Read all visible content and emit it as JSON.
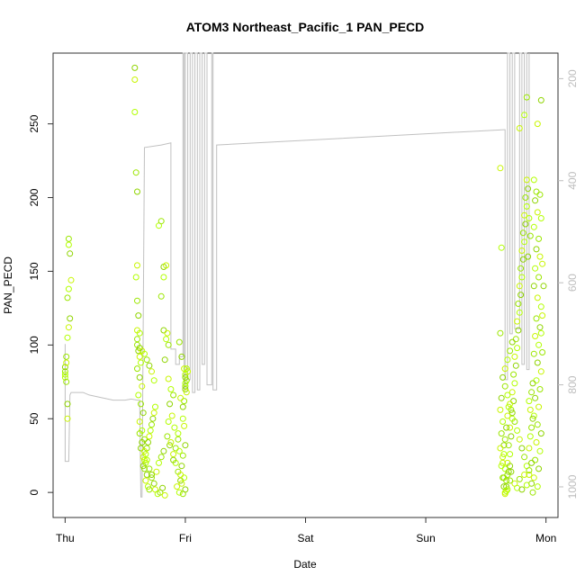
{
  "chart_data": {
    "type": "scatter",
    "title": "ATOM3 Northeast_Pacific_1 PAN_PECD",
    "xlabel": "Date",
    "ylabel": "PAN_PECD",
    "x_ticks": [
      "Thu",
      "Fri",
      "Sat",
      "Sun",
      "Mon"
    ],
    "y_ticks": [
      0,
      50,
      100,
      150,
      200,
      250
    ],
    "ylim": [
      -17,
      298
    ],
    "secondary_axis": {
      "side": "right",
      "color": "#bdbdbd",
      "ticks": [
        200,
        400,
        600,
        800,
        1000
      ],
      "lim": [
        1060,
        150
      ],
      "reversed": true
    },
    "x_units": "days since Thu 00:00",
    "xlim": [
      -0.1,
      4.1
    ],
    "marker_colors": [
      "#b2ff00",
      "#9be600",
      "#8fd400",
      "#c8f500"
    ],
    "line_color": "#c0c0c0",
    "line_series": [
      [
        0.0,
        720
      ],
      [
        0.0,
        950
      ],
      [
        0.03,
        950
      ],
      [
        0.04,
        820
      ],
      [
        0.05,
        815
      ],
      [
        0.08,
        815
      ],
      [
        0.1,
        815
      ],
      [
        0.15,
        815
      ],
      [
        0.2,
        820
      ],
      [
        0.3,
        825
      ],
      [
        0.4,
        830
      ],
      [
        0.5,
        830
      ],
      [
        0.55,
        828
      ],
      [
        0.6,
        830
      ],
      [
        0.62,
        830
      ],
      [
        0.63,
        1020
      ],
      [
        0.64,
        1020
      ],
      [
        0.66,
        335
      ],
      [
        0.8,
        330
      ],
      [
        0.88,
        326
      ],
      [
        0.88,
        730
      ],
      [
        0.92,
        730
      ],
      [
        0.92,
        760
      ],
      [
        0.95,
        760
      ],
      [
        0.95,
        745
      ],
      [
        0.98,
        745
      ],
      [
        0.98,
        150
      ],
      [
        0.99,
        150
      ],
      [
        0.99,
        810
      ],
      [
        1.0,
        810
      ],
      [
        1.0,
        150
      ],
      [
        1.02,
        150
      ],
      [
        1.02,
        790
      ],
      [
        1.04,
        790
      ],
      [
        1.04,
        150
      ],
      [
        1.06,
        150
      ],
      [
        1.06,
        815
      ],
      [
        1.08,
        815
      ],
      [
        1.08,
        150
      ],
      [
        1.1,
        150
      ],
      [
        1.1,
        810
      ],
      [
        1.12,
        810
      ],
      [
        1.12,
        150
      ],
      [
        1.14,
        150
      ],
      [
        1.14,
        760
      ],
      [
        1.16,
        760
      ],
      [
        1.16,
        150
      ],
      [
        1.18,
        150
      ],
      [
        1.18,
        800
      ],
      [
        1.22,
        800
      ],
      [
        1.22,
        150
      ],
      [
        1.23,
        150
      ],
      [
        1.23,
        810
      ],
      [
        1.26,
        810
      ],
      [
        1.26,
        330
      ],
      [
        3.65,
        300
      ],
      [
        3.66,
        300
      ],
      [
        3.66,
        790
      ],
      [
        3.68,
        790
      ],
      [
        3.68,
        150
      ],
      [
        3.7,
        150
      ],
      [
        3.7,
        700
      ],
      [
        3.72,
        700
      ],
      [
        3.72,
        150
      ],
      [
        3.74,
        150
      ],
      [
        3.74,
        690
      ],
      [
        3.78,
        690
      ],
      [
        3.78,
        150
      ],
      [
        3.8,
        150
      ],
      [
        3.8,
        760
      ],
      [
        3.82,
        760
      ],
      [
        3.82,
        150
      ],
      [
        3.84,
        150
      ],
      [
        3.84,
        770
      ],
      [
        3.86,
        770
      ],
      [
        3.86,
        150
      ]
    ],
    "points": [
      [
        0.0,
        78
      ],
      [
        0.0,
        82
      ],
      [
        0.0,
        85
      ],
      [
        0.01,
        88
      ],
      [
        0.0,
        80
      ],
      [
        0.01,
        75
      ],
      [
        0.02,
        60
      ],
      [
        0.02,
        50
      ],
      [
        0.03,
        168
      ],
      [
        0.03,
        172
      ],
      [
        0.04,
        162
      ],
      [
        0.05,
        144
      ],
      [
        0.03,
        138
      ],
      [
        0.02,
        132
      ],
      [
        0.04,
        118
      ],
      [
        0.03,
        112
      ],
      [
        0.02,
        105
      ],
      [
        0.01,
        92
      ],
      [
        0.58,
        288
      ],
      [
        0.58,
        280
      ],
      [
        0.58,
        258
      ],
      [
        0.59,
        217
      ],
      [
        0.6,
        204
      ],
      [
        0.6,
        154
      ],
      [
        0.59,
        146
      ],
      [
        0.6,
        130
      ],
      [
        0.61,
        120
      ],
      [
        0.6,
        110
      ],
      [
        0.62,
        108
      ],
      [
        0.6,
        104
      ],
      [
        0.61,
        96
      ],
      [
        0.62,
        92
      ],
      [
        0.63,
        88
      ],
      [
        0.6,
        84
      ],
      [
        0.62,
        78
      ],
      [
        0.64,
        72
      ],
      [
        0.61,
        66
      ],
      [
        0.63,
        60
      ],
      [
        0.65,
        54
      ],
      [
        0.62,
        48
      ],
      [
        0.64,
        42
      ],
      [
        0.66,
        36
      ],
      [
        0.63,
        30
      ],
      [
        0.65,
        24
      ],
      [
        0.67,
        20
      ],
      [
        0.66,
        16
      ],
      [
        0.68,
        12
      ],
      [
        0.67,
        8
      ],
      [
        0.69,
        4
      ],
      [
        0.7,
        2
      ],
      [
        0.65,
        18
      ],
      [
        0.66,
        22
      ],
      [
        0.67,
        26
      ],
      [
        0.68,
        30
      ],
      [
        0.69,
        34
      ],
      [
        0.7,
        38
      ],
      [
        0.71,
        42
      ],
      [
        0.72,
        46
      ],
      [
        0.73,
        50
      ],
      [
        0.74,
        54
      ],
      [
        0.75,
        58
      ],
      [
        0.72,
        10
      ],
      [
        0.74,
        6
      ],
      [
        0.76,
        14
      ],
      [
        0.78,
        20
      ],
      [
        0.8,
        24
      ],
      [
        0.82,
        28
      ],
      [
        0.75,
        2
      ],
      [
        0.77,
        -1
      ],
      [
        0.79,
        0
      ],
      [
        0.81,
        3
      ],
      [
        0.83,
        -2
      ],
      [
        0.78,
        181
      ],
      [
        0.8,
        184
      ],
      [
        0.82,
        153
      ],
      [
        0.84,
        154
      ],
      [
        0.82,
        146
      ],
      [
        0.8,
        133
      ],
      [
        0.82,
        110
      ],
      [
        0.85,
        108
      ],
      [
        0.84,
        104
      ],
      [
        0.86,
        100
      ],
      [
        0.83,
        90
      ],
      [
        0.86,
        77
      ],
      [
        0.88,
        70
      ],
      [
        0.9,
        66
      ],
      [
        0.87,
        60
      ],
      [
        0.89,
        52
      ],
      [
        0.91,
        44
      ],
      [
        0.85,
        38
      ],
      [
        0.87,
        32
      ],
      [
        0.9,
        26
      ],
      [
        0.92,
        20
      ],
      [
        0.94,
        14
      ],
      [
        0.96,
        8
      ],
      [
        0.93,
        4
      ],
      [
        0.95,
        0
      ],
      [
        0.98,
        -1
      ],
      [
        1.0,
        2
      ],
      [
        0.97,
        6
      ],
      [
        0.99,
        10
      ],
      [
        0.95,
        102
      ],
      [
        0.97,
        92
      ],
      [
        0.99,
        84
      ],
      [
        1.0,
        80
      ],
      [
        1.0,
        72
      ],
      [
        1.0,
        70
      ],
      [
        1.01,
        68
      ],
      [
        1.0,
        74
      ],
      [
        1.01,
        76
      ],
      [
        1.0,
        78
      ],
      [
        1.02,
        82
      ],
      [
        1.01,
        84
      ],
      [
        0.99,
        62
      ],
      [
        0.98,
        58
      ],
      [
        0.96,
        64
      ],
      [
        0.94,
        40
      ],
      [
        0.92,
        30
      ],
      [
        0.9,
        22
      ],
      [
        0.88,
        34
      ],
      [
        0.86,
        48
      ],
      [
        0.98,
        25
      ],
      [
        0.97,
        18
      ],
      [
        0.96,
        12
      ],
      [
        0.95,
        28
      ],
      [
        0.94,
        36
      ],
      [
        1.0,
        32
      ],
      [
        0.99,
        45
      ],
      [
        0.98,
        50
      ],
      [
        0.6,
        100
      ],
      [
        0.62,
        98
      ],
      [
        0.64,
        96
      ],
      [
        0.66,
        94
      ],
      [
        0.68,
        90
      ],
      [
        0.7,
        86
      ],
      [
        0.72,
        82
      ],
      [
        0.74,
        76
      ],
      [
        0.62,
        40
      ],
      [
        0.64,
        34
      ],
      [
        0.66,
        28
      ],
      [
        0.68,
        22
      ],
      [
        0.7,
        16
      ],
      [
        0.72,
        12
      ],
      [
        3.62,
        220
      ],
      [
        3.63,
        166
      ],
      [
        3.62,
        108
      ],
      [
        3.63,
        64
      ],
      [
        3.62,
        56
      ],
      [
        3.64,
        48
      ],
      [
        3.63,
        40
      ],
      [
        3.65,
        32
      ],
      [
        3.64,
        24
      ],
      [
        3.66,
        16
      ],
      [
        3.65,
        10
      ],
      [
        3.67,
        4
      ],
      [
        3.66,
        0
      ],
      [
        3.68,
        2
      ],
      [
        3.67,
        8
      ],
      [
        3.69,
        14
      ],
      [
        3.68,
        20
      ],
      [
        3.7,
        26
      ],
      [
        3.69,
        32
      ],
      [
        3.71,
        38
      ],
      [
        3.7,
        44
      ],
      [
        3.72,
        50
      ],
      [
        3.71,
        56
      ],
      [
        3.73,
        62
      ],
      [
        3.72,
        68
      ],
      [
        3.74,
        74
      ],
      [
        3.73,
        80
      ],
      [
        3.75,
        86
      ],
      [
        3.74,
        92
      ],
      [
        3.76,
        98
      ],
      [
        3.75,
        104
      ],
      [
        3.77,
        110
      ],
      [
        3.76,
        116
      ],
      [
        3.78,
        122
      ],
      [
        3.77,
        128
      ],
      [
        3.79,
        134
      ],
      [
        3.78,
        140
      ],
      [
        3.8,
        146
      ],
      [
        3.79,
        152
      ],
      [
        3.81,
        158
      ],
      [
        3.8,
        164
      ],
      [
        3.82,
        170
      ],
      [
        3.81,
        176
      ],
      [
        3.83,
        182
      ],
      [
        3.82,
        188
      ],
      [
        3.84,
        194
      ],
      [
        3.83,
        200
      ],
      [
        3.85,
        206
      ],
      [
        3.84,
        212
      ],
      [
        3.86,
        186
      ],
      [
        3.87,
        174
      ],
      [
        3.85,
        160
      ],
      [
        3.78,
        247
      ],
      [
        3.82,
        256
      ],
      [
        3.84,
        268
      ],
      [
        3.96,
        266
      ],
      [
        3.93,
        250
      ],
      [
        3.9,
        212
      ],
      [
        3.92,
        204
      ],
      [
        3.91,
        198
      ],
      [
        3.93,
        190
      ],
      [
        3.9,
        180
      ],
      [
        3.94,
        172
      ],
      [
        3.92,
        165
      ],
      [
        3.95,
        160
      ],
      [
        3.91,
        152
      ],
      [
        3.94,
        146
      ],
      [
        3.9,
        140
      ],
      [
        3.93,
        132
      ],
      [
        3.96,
        126
      ],
      [
        3.92,
        118
      ],
      [
        3.95,
        112
      ],
      [
        3.91,
        106
      ],
      [
        3.94,
        100
      ],
      [
        3.9,
        94
      ],
      [
        3.93,
        88
      ],
      [
        3.96,
        82
      ],
      [
        3.92,
        76
      ],
      [
        3.95,
        70
      ],
      [
        3.91,
        64
      ],
      [
        3.94,
        58
      ],
      [
        3.9,
        52
      ],
      [
        3.93,
        46
      ],
      [
        3.96,
        40
      ],
      [
        3.92,
        34
      ],
      [
        3.95,
        28
      ],
      [
        3.91,
        22
      ],
      [
        3.94,
        16
      ],
      [
        3.9,
        10
      ],
      [
        3.93,
        4
      ],
      [
        3.89,
        0
      ],
      [
        3.88,
        6
      ],
      [
        3.86,
        12
      ],
      [
        3.84,
        18
      ],
      [
        3.82,
        24
      ],
      [
        3.8,
        30
      ],
      [
        3.78,
        36
      ],
      [
        3.76,
        42
      ],
      [
        3.74,
        48
      ],
      [
        3.72,
        54
      ],
      [
        3.7,
        60
      ],
      [
        3.68,
        66
      ],
      [
        3.66,
        72
      ],
      [
        3.64,
        78
      ],
      [
        3.66,
        84
      ],
      [
        3.68,
        90
      ],
      [
        3.7,
        96
      ],
      [
        3.72,
        102
      ],
      [
        3.74,
        6
      ],
      [
        3.76,
        3
      ],
      [
        3.78,
        9
      ],
      [
        3.8,
        2
      ],
      [
        3.82,
        12
      ],
      [
        3.84,
        5
      ],
      [
        3.86,
        15
      ],
      [
        3.88,
        20
      ],
      [
        3.64,
        20
      ],
      [
        3.65,
        26
      ],
      [
        3.66,
        36
      ],
      [
        3.67,
        44
      ],
      [
        3.68,
        52
      ],
      [
        3.69,
        58
      ],
      [
        3.7,
        8
      ],
      [
        3.71,
        14
      ],
      [
        3.62,
        30
      ],
      [
        3.63,
        18
      ],
      [
        3.64,
        10
      ],
      [
        3.65,
        4
      ],
      [
        3.66,
        -1
      ],
      [
        3.67,
        1
      ],
      [
        3.68,
        12
      ],
      [
        3.7,
        18
      ],
      [
        3.86,
        30
      ],
      [
        3.87,
        38
      ],
      [
        3.88,
        44
      ],
      [
        3.89,
        50
      ],
      [
        3.87,
        56
      ],
      [
        3.86,
        62
      ],
      [
        3.88,
        68
      ],
      [
        3.89,
        74
      ],
      [
        3.97,
        120
      ],
      [
        3.96,
        108
      ],
      [
        3.97,
        95
      ],
      [
        3.98,
        140
      ],
      [
        3.97,
        155
      ],
      [
        3.96,
        186
      ],
      [
        3.95,
        202
      ]
    ]
  }
}
